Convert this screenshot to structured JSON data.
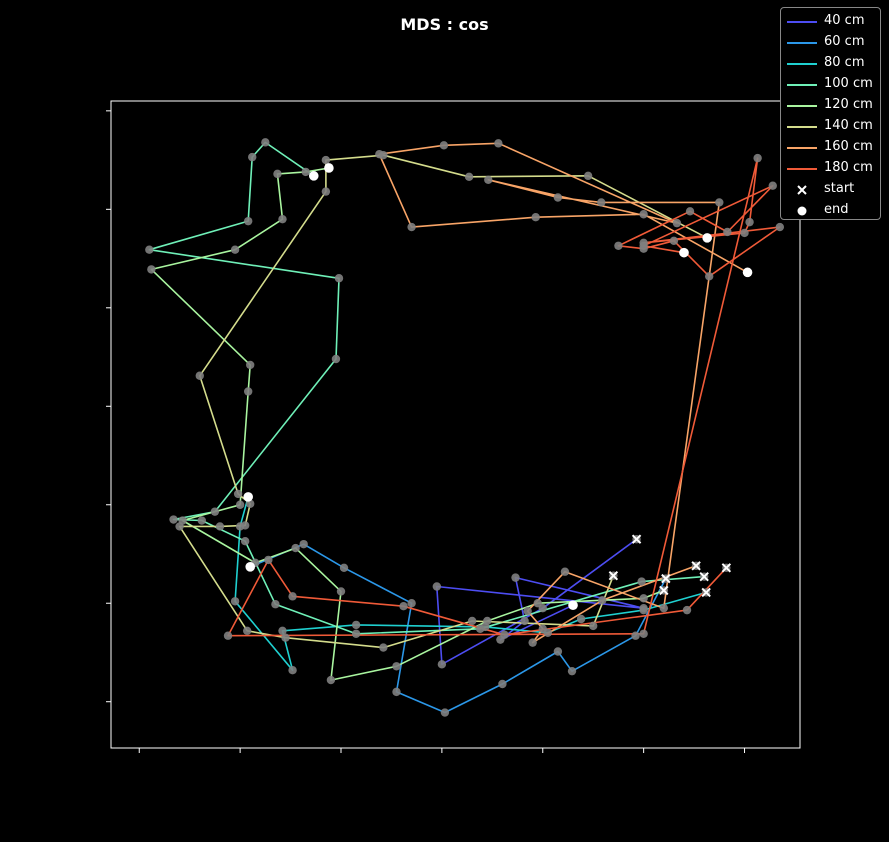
{
  "chart_data": {
    "type": "line",
    "title": "MDS : cos",
    "xlabel": "",
    "ylabel": "",
    "xlim": [
      -0.28,
      6.55
    ],
    "ylim": [
      -0.47,
      6.1
    ],
    "grid": false,
    "legend_position": "top-right",
    "point_color": "#808080",
    "start_label": "start",
    "end_label": "end",
    "series": [
      {
        "name": "40 cm",
        "color": "#4d4df2",
        "points": [
          [
            4.93,
            1.65
          ],
          [
            4.0,
            0.95
          ],
          [
            3.0,
            0.38
          ],
          [
            2.95,
            1.17
          ],
          [
            5.0,
            0.95
          ],
          [
            3.73,
            1.26
          ],
          [
            3.82,
            0.82
          ],
          [
            3.58,
            0.63
          ],
          [
            4.3,
            0.98
          ]
        ]
      },
      {
        "name": "60 cm",
        "color": "#2b97e8",
        "points": [
          [
            5.22,
            1.25
          ],
          [
            4.92,
            0.67
          ],
          [
            4.29,
            0.31
          ],
          [
            4.15,
            0.51
          ],
          [
            3.6,
            0.18
          ],
          [
            3.03,
            -0.11
          ],
          [
            2.55,
            0.1
          ],
          [
            2.7,
            1.0
          ],
          [
            2.03,
            1.36
          ],
          [
            1.63,
            1.6
          ],
          [
            1.1,
            1.37
          ]
        ]
      },
      {
        "name": "80 cm",
        "color": "#1fd0d0",
        "points": [
          [
            5.62,
            1.11
          ],
          [
            5.0,
            0.93
          ],
          [
            4.38,
            0.84
          ],
          [
            4.05,
            0.7
          ],
          [
            3.43,
            0.76
          ],
          [
            2.15,
            0.78
          ],
          [
            1.42,
            0.72
          ],
          [
            1.52,
            0.32
          ],
          [
            0.95,
            1.02
          ],
          [
            1.0,
            1.78
          ],
          [
            1.08,
            2.08
          ]
        ]
      },
      {
        "name": "100 cm",
        "color": "#6ff0b8",
        "points": [
          [
            5.6,
            1.27
          ],
          [
            4.98,
            1.22
          ],
          [
            3.38,
            0.74
          ],
          [
            2.15,
            0.69
          ],
          [
            1.35,
            0.99
          ],
          [
            1.05,
            1.63
          ],
          [
            0.62,
            1.84
          ],
          [
            0.34,
            1.85
          ],
          [
            0.75,
            1.93
          ],
          [
            1.95,
            3.48
          ],
          [
            1.98,
            4.3
          ],
          [
            0.1,
            4.59
          ],
          [
            1.08,
            4.88
          ],
          [
            1.12,
            5.53
          ],
          [
            1.25,
            5.68
          ],
          [
            1.73,
            5.34
          ]
        ]
      },
      {
        "name": "120 cm",
        "color": "#a9f59f",
        "points": [
          [
            5.2,
            1.13
          ],
          [
            5.0,
            1.05
          ],
          [
            3.95,
            1.0
          ],
          [
            3.45,
            0.82
          ],
          [
            2.55,
            0.36
          ],
          [
            1.9,
            0.22
          ],
          [
            2.0,
            1.12
          ],
          [
            1.55,
            1.56
          ],
          [
            1.15,
            1.41
          ],
          [
            0.43,
            1.84
          ],
          [
            1.0,
            2.0
          ],
          [
            1.08,
            3.15
          ],
          [
            1.1,
            3.42
          ],
          [
            0.12,
            4.39
          ],
          [
            0.95,
            4.59
          ],
          [
            1.42,
            4.9
          ],
          [
            1.37,
            5.36
          ],
          [
            1.65,
            5.38
          ],
          [
            1.88,
            5.42
          ]
        ]
      },
      {
        "name": "140 cm",
        "color": "#d4dc8c",
        "points": [
          [
            4.7,
            1.28
          ],
          [
            4.5,
            0.77
          ],
          [
            3.3,
            0.82
          ],
          [
            2.42,
            0.55
          ],
          [
            1.45,
            0.65
          ],
          [
            1.07,
            0.72
          ],
          [
            0.4,
            1.78
          ],
          [
            0.8,
            1.78
          ],
          [
            1.05,
            1.79
          ],
          [
            1.1,
            2.01
          ],
          [
            0.98,
            2.11
          ],
          [
            0.6,
            3.31
          ],
          [
            1.85,
            5.18
          ],
          [
            1.85,
            5.5
          ],
          [
            2.42,
            5.55
          ],
          [
            3.27,
            5.33
          ],
          [
            4.45,
            5.34
          ],
          [
            5.63,
            4.71
          ]
        ]
      },
      {
        "name": "160 cm",
        "color": "#f8a467",
        "points": [
          [
            5.52,
            1.38
          ],
          [
            4.59,
            1.03
          ],
          [
            3.9,
            0.6
          ],
          [
            4.0,
            0.74
          ],
          [
            3.85,
            0.92
          ],
          [
            4.22,
            1.32
          ],
          [
            5.2,
            0.95
          ],
          [
            5.75,
            5.07
          ],
          [
            4.58,
            5.07
          ],
          [
            4.15,
            5.12
          ],
          [
            3.46,
            5.3
          ],
          [
            5.33,
            4.86
          ],
          [
            3.56,
            5.67
          ],
          [
            3.02,
            5.65
          ],
          [
            2.38,
            5.56
          ],
          [
            2.7,
            4.82
          ],
          [
            3.93,
            4.92
          ],
          [
            5.0,
            4.95
          ],
          [
            6.03,
            4.36
          ]
        ]
      },
      {
        "name": "180 cm",
        "color": "#f05a38",
        "points": [
          [
            5.82,
            1.36
          ],
          [
            5.43,
            0.93
          ],
          [
            3.62,
            0.68
          ],
          [
            2.62,
            0.97
          ],
          [
            1.52,
            1.07
          ],
          [
            1.28,
            1.44
          ],
          [
            0.88,
            0.67
          ],
          [
            5.0,
            0.69
          ],
          [
            6.13,
            5.52
          ],
          [
            6.05,
            4.87
          ],
          [
            6.0,
            4.76
          ],
          [
            5.0,
            4.66
          ],
          [
            6.35,
            4.82
          ],
          [
            5.65,
            4.32
          ],
          [
            5.3,
            4.68
          ],
          [
            5.0,
            4.6
          ],
          [
            4.75,
            4.63
          ],
          [
            5.46,
            4.98
          ],
          [
            5.83,
            4.77
          ],
          [
            6.28,
            5.24
          ],
          [
            5.0,
            4.63
          ],
          [
            5.4,
            4.56
          ]
        ]
      }
    ]
  }
}
